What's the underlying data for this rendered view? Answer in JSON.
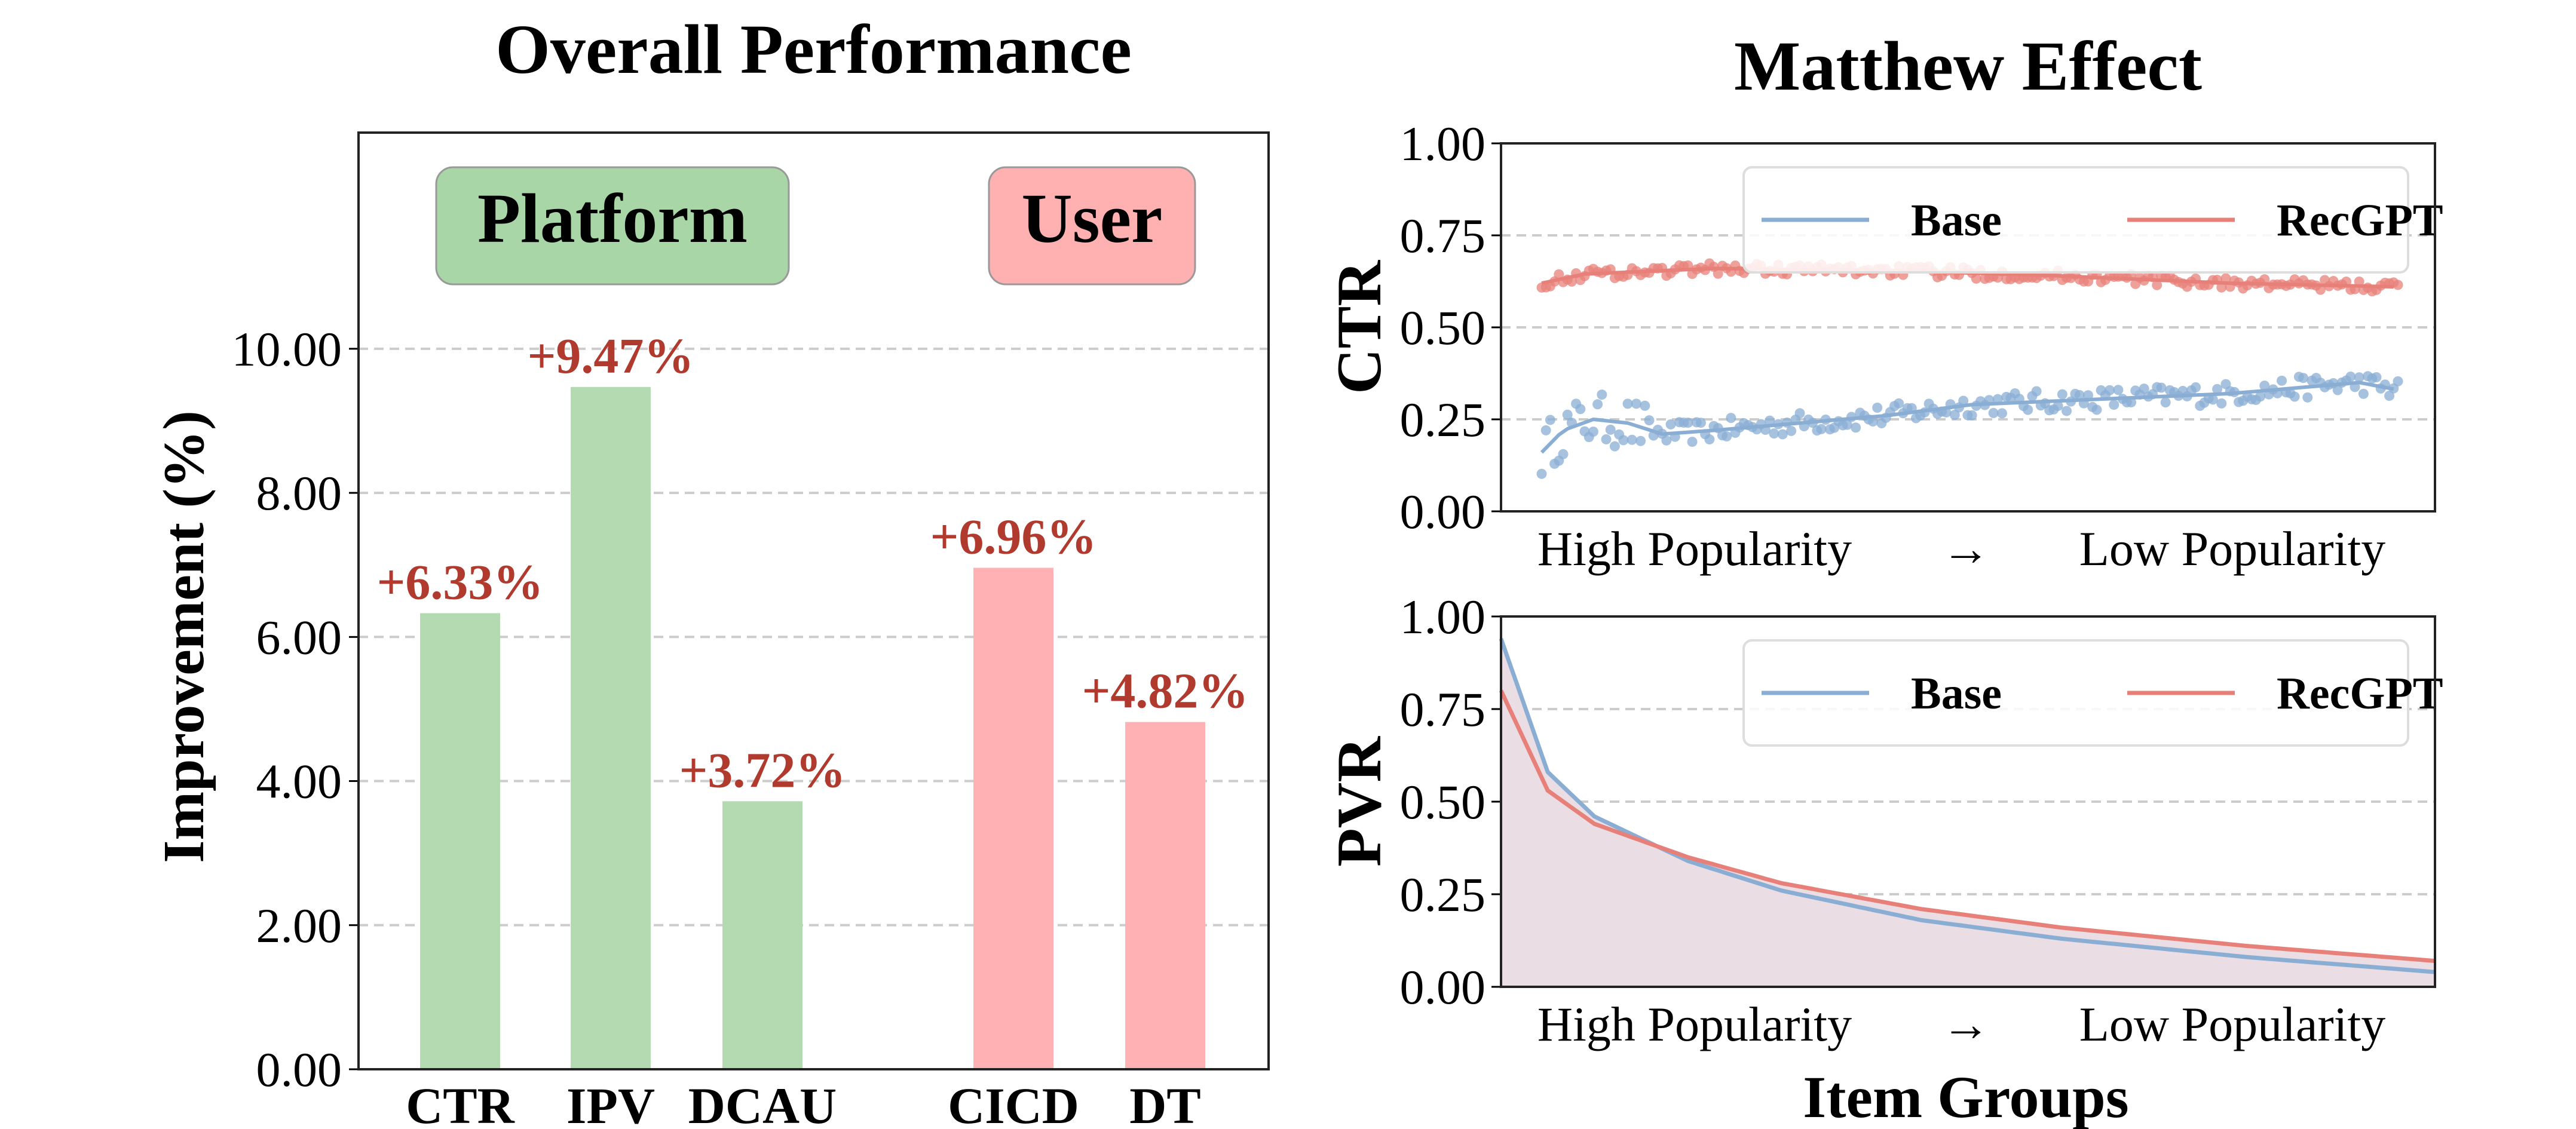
{
  "colors": {
    "platform_bar": "#b3dab1",
    "user_bar": "#ffb1b3",
    "value_label": "#b03a2e",
    "base_line": "#8aadd4",
    "recgpt_line": "#e8807a",
    "fill_area": "#eadde3",
    "grid": "#cccccc",
    "platform_box": "#a9d6a6",
    "user_box": "#ffb0b1"
  },
  "chart_data": [
    {
      "type": "bar",
      "title": "Overall Performance",
      "ylabel": "Improvement (%)",
      "ylim": [
        0,
        13
      ],
      "yticks": [
        "0.00",
        "2.00",
        "4.00",
        "6.00",
        "8.00",
        "10.00"
      ],
      "grid": true,
      "groups": [
        {
          "name": "Platform",
          "categories": [
            "CTR",
            "IPV",
            "DCAU"
          ],
          "values": [
            6.33,
            9.47,
            3.72
          ],
          "labels": [
            "+6.33%",
            "+9.47%",
            "+3.72%"
          ]
        },
        {
          "name": "User",
          "categories": [
            "CICD",
            "DT"
          ],
          "values": [
            6.96,
            4.82
          ],
          "labels": [
            "+6.96%",
            "+4.82%"
          ]
        }
      ]
    },
    {
      "type": "scatter",
      "title": "Matthew Effect",
      "ylabel": "CTR",
      "ylim": [
        0,
        1
      ],
      "yticks": [
        "0.00",
        "0.25",
        "0.50",
        "0.75",
        "1.00"
      ],
      "xlabel_left": "High Popularity",
      "xlabel_arrow": "→",
      "xlabel_right": "Low Popularity",
      "num_groups": 200,
      "legend": [
        "Base",
        "RecGPT"
      ],
      "legend_position": "top-right",
      "series": [
        {
          "name": "Base",
          "trend": [
            [
              0,
              0.16
            ],
            [
              5,
              0.22
            ],
            [
              12,
              0.25
            ],
            [
              20,
              0.24
            ],
            [
              28,
              0.21
            ],
            [
              40,
              0.22
            ],
            [
              60,
              0.24
            ],
            [
              80,
              0.26
            ],
            [
              100,
              0.29
            ],
            [
              120,
              0.3
            ],
            [
              140,
              0.31
            ],
            [
              160,
              0.32
            ],
            [
              180,
              0.34
            ],
            [
              190,
              0.35
            ],
            [
              199,
              0.33
            ]
          ],
          "noise": 0.03
        },
        {
          "name": "RecGPT",
          "trend": [
            [
              0,
              0.62
            ],
            [
              10,
              0.645
            ],
            [
              40,
              0.66
            ],
            [
              80,
              0.655
            ],
            [
              120,
              0.64
            ],
            [
              160,
              0.62
            ],
            [
              199,
              0.61
            ]
          ],
          "noise": 0.015
        }
      ]
    },
    {
      "type": "area",
      "ylabel": "PVR",
      "xlabel": "Item Groups",
      "ylim": [
        0,
        1
      ],
      "yticks": [
        "0.00",
        "0.25",
        "0.50",
        "0.75",
        "1.00"
      ],
      "xlabel_left": "High Popularity",
      "xlabel_arrow": "→",
      "xlabel_right": "Low Popularity",
      "legend": [
        "Base",
        "RecGPT"
      ],
      "legend_position": "top-right",
      "series": [
        {
          "name": "Base",
          "x": [
            0,
            0.05,
            0.1,
            0.2,
            0.3,
            0.45,
            0.6,
            0.8,
            1.0
          ],
          "values": [
            0.94,
            0.58,
            0.46,
            0.34,
            0.26,
            0.18,
            0.13,
            0.08,
            0.04
          ]
        },
        {
          "name": "RecGPT",
          "x": [
            0,
            0.05,
            0.1,
            0.2,
            0.3,
            0.45,
            0.6,
            0.8,
            1.0
          ],
          "values": [
            0.8,
            0.53,
            0.44,
            0.35,
            0.28,
            0.21,
            0.16,
            0.11,
            0.07
          ]
        }
      ]
    }
  ]
}
